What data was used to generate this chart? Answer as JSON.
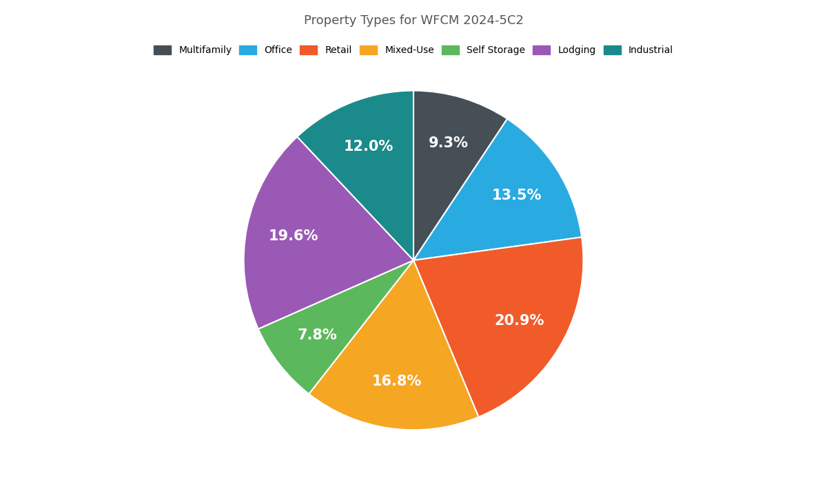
{
  "title": "Property Types for WFCM 2024-5C2",
  "slices": [
    {
      "label": "Multifamily",
      "value": 9.3,
      "color": "#454f55"
    },
    {
      "label": "Office",
      "value": 13.5,
      "color": "#29abe2"
    },
    {
      "label": "Retail",
      "value": 20.9,
      "color": "#f15a29"
    },
    {
      "label": "Mixed-Use",
      "value": 16.8,
      "color": "#f5a623"
    },
    {
      "label": "Self Storage",
      "value": 7.8,
      "color": "#5cb85c"
    },
    {
      "label": "Lodging",
      "value": 19.6,
      "color": "#9b59b6"
    },
    {
      "label": "Industrial",
      "value": 12.0,
      "color": "#1a8a8a"
    }
  ],
  "text_color": "white",
  "label_fontsize": 15,
  "title_fontsize": 13,
  "start_angle": 90,
  "background_color": "#ffffff"
}
